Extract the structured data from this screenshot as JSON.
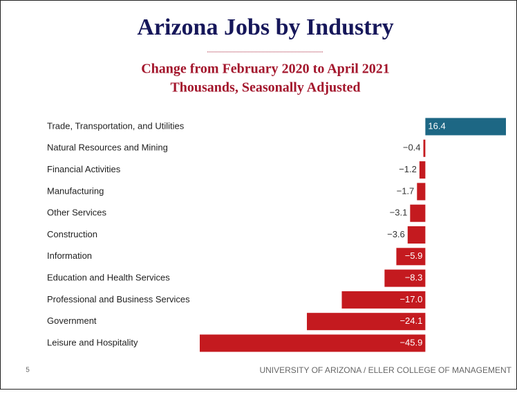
{
  "slide_number": "5",
  "footer": "UNIVERSITY OF ARIZONA / ELLER COLLEGE OF MANAGEMENT",
  "chart_data": {
    "type": "bar",
    "orientation": "horizontal",
    "title": "Arizona Jobs by Industry",
    "subtitle": [
      "Change from February 2020 to April 2021",
      "Thousands, Seasonally Adjusted"
    ],
    "categories": [
      "Trade, Transportation, and Utilities",
      "Natural Resources and Mining",
      "Financial Activities",
      "Manufacturing",
      "Other Services",
      "Construction",
      "Information",
      "Education and Health Services",
      "Professional and Business Services",
      "Government",
      "Leisure and Hospitality"
    ],
    "values": [
      16.4,
      -0.4,
      -1.2,
      -1.7,
      -3.1,
      -3.6,
      -5.9,
      -8.3,
      -17.0,
      -24.1,
      -45.9
    ],
    "value_labels": [
      "16.4",
      "−0.4",
      "−1.2",
      "−1.7",
      "−3.1",
      "−3.6",
      "−5.9",
      "−8.3",
      "−17.0",
      "−24.1",
      "−45.9"
    ],
    "positive_color": "#1d6784",
    "negative_color": "#c41a1f"
  }
}
